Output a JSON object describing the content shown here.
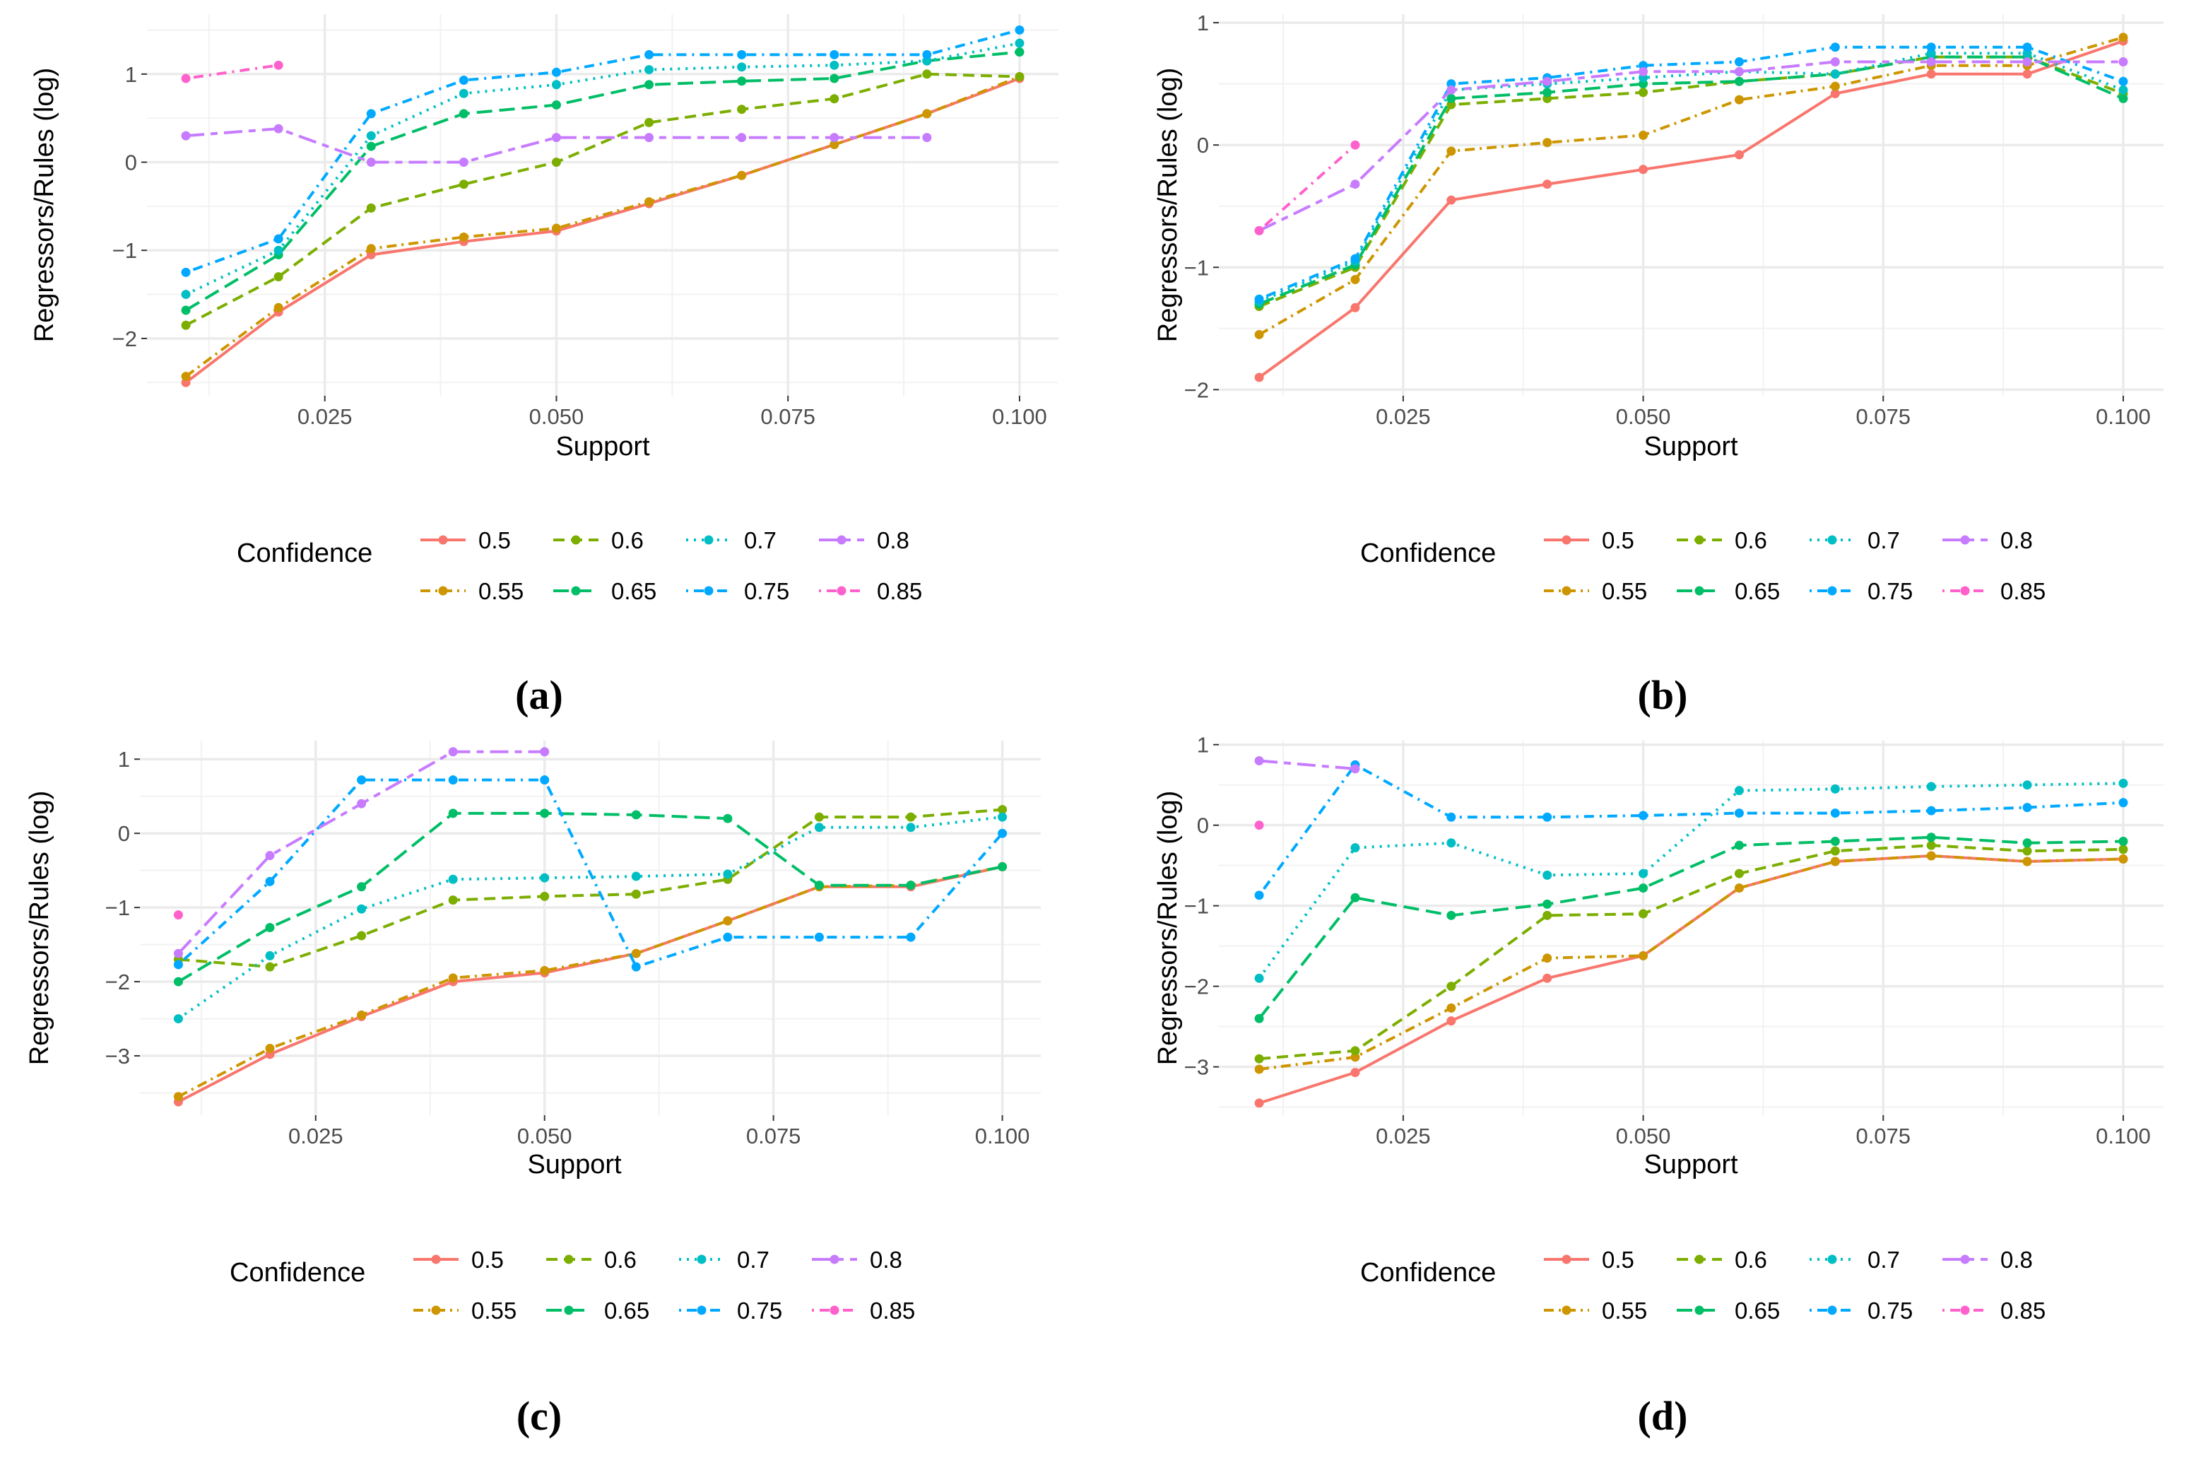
{
  "chart_data": [
    {
      "panel_label": "(a)",
      "type": "line",
      "xlabel": "Support",
      "ylabel": "Regressors/Rules (log)",
      "xlim": [
        0.0058,
        0.1042
      ],
      "ylim": [
        -2.65,
        1.68
      ],
      "x_ticks": [
        0.025,
        0.05,
        0.075,
        0.1
      ],
      "x_tick_labels": [
        "0.025",
        "0.050",
        "0.075",
        "0.100"
      ],
      "y_ticks": [
        -2,
        -1,
        0,
        1
      ],
      "y_tick_labels": [
        "−2",
        "−1",
        "0",
        "1"
      ],
      "series": [
        {
          "name": "0.5",
          "x": [
            0.01,
            0.02,
            0.03,
            0.04,
            0.05,
            0.06,
            0.07,
            0.08,
            0.09,
            0.1
          ],
          "y": [
            -2.5,
            -1.7,
            -1.05,
            -0.9,
            -0.78,
            -0.47,
            -0.15,
            0.2,
            0.55,
            0.95
          ]
        },
        {
          "name": "0.55",
          "x": [
            0.01,
            0.02,
            0.03,
            0.04,
            0.05,
            0.06,
            0.07,
            0.08,
            0.09,
            0.1
          ],
          "y": [
            -2.43,
            -1.65,
            -0.98,
            -0.85,
            -0.75,
            -0.45,
            -0.15,
            0.2,
            0.55,
            0.97
          ]
        },
        {
          "name": "0.6",
          "x": [
            0.01,
            0.02,
            0.03,
            0.04,
            0.05,
            0.06,
            0.07,
            0.08,
            0.09,
            0.1
          ],
          "y": [
            -1.85,
            -1.3,
            -0.52,
            -0.25,
            0.0,
            0.45,
            0.6,
            0.72,
            1.0,
            0.97
          ]
        },
        {
          "name": "0.65",
          "x": [
            0.01,
            0.02,
            0.03,
            0.04,
            0.05,
            0.06,
            0.07,
            0.08,
            0.09,
            0.1
          ],
          "y": [
            -1.68,
            -1.05,
            0.18,
            0.55,
            0.65,
            0.88,
            0.92,
            0.95,
            1.15,
            1.25
          ]
        },
        {
          "name": "0.7",
          "x": [
            0.01,
            0.02,
            0.03,
            0.04,
            0.05,
            0.06,
            0.07,
            0.08,
            0.09,
            0.1
          ],
          "y": [
            -1.5,
            -1.0,
            0.3,
            0.78,
            0.88,
            1.05,
            1.08,
            1.1,
            1.15,
            1.35
          ]
        },
        {
          "name": "0.75",
          "x": [
            0.01,
            0.02,
            0.03,
            0.04,
            0.05,
            0.06,
            0.07,
            0.08,
            0.09,
            0.1
          ],
          "y": [
            -1.25,
            -0.87,
            0.55,
            0.93,
            1.02,
            1.22,
            1.22,
            1.22,
            1.22,
            1.5
          ]
        },
        {
          "name": "0.8",
          "x": [
            0.01,
            0.02,
            0.03,
            0.04,
            0.05,
            0.06,
            0.07,
            0.08,
            0.09
          ],
          "y": [
            0.3,
            0.38,
            0.0,
            0.0,
            0.28,
            0.28,
            0.28,
            0.28,
            0.28
          ]
        },
        {
          "name": "0.85",
          "x": [
            0.01,
            0.02
          ],
          "y": [
            0.95,
            1.1
          ]
        }
      ]
    },
    {
      "panel_label": "(b)",
      "type": "line",
      "xlabel": "Support",
      "ylabel": "Regressors/Rules (log)",
      "xlim": [
        0.0058,
        0.1042
      ],
      "ylim": [
        -2.05,
        1.07
      ],
      "x_ticks": [
        0.025,
        0.05,
        0.075,
        0.1
      ],
      "x_tick_labels": [
        "0.025",
        "0.050",
        "0.075",
        "0.100"
      ],
      "y_ticks": [
        -2,
        -1,
        0,
        1
      ],
      "y_tick_labels": [
        "−2",
        "−1",
        "0",
        "1"
      ],
      "series": [
        {
          "name": "0.5",
          "x": [
            0.01,
            0.02,
            0.03,
            0.04,
            0.05,
            0.06,
            0.07,
            0.08,
            0.09,
            0.1
          ],
          "y": [
            -1.9,
            -1.33,
            -0.45,
            -0.32,
            -0.2,
            -0.08,
            0.42,
            0.58,
            0.58,
            0.85
          ]
        },
        {
          "name": "0.55",
          "x": [
            0.01,
            0.02,
            0.03,
            0.04,
            0.05,
            0.06,
            0.07,
            0.08,
            0.09,
            0.1
          ],
          "y": [
            -1.55,
            -1.1,
            -0.05,
            0.02,
            0.08,
            0.37,
            0.48,
            0.65,
            0.65,
            0.88
          ]
        },
        {
          "name": "0.6",
          "x": [
            0.01,
            0.02,
            0.03,
            0.04,
            0.05,
            0.06,
            0.07,
            0.08,
            0.09,
            0.1
          ],
          "y": [
            -1.32,
            -1.0,
            0.33,
            0.38,
            0.43,
            0.52,
            0.58,
            0.72,
            0.72,
            0.42
          ]
        },
        {
          "name": "0.65",
          "x": [
            0.01,
            0.02,
            0.03,
            0.04,
            0.05,
            0.06,
            0.07,
            0.08,
            0.09,
            0.1
          ],
          "y": [
            -1.3,
            -0.98,
            0.38,
            0.43,
            0.5,
            0.52,
            0.58,
            0.72,
            0.72,
            0.38
          ]
        },
        {
          "name": "0.7",
          "x": [
            0.01,
            0.02,
            0.03,
            0.04,
            0.05,
            0.06,
            0.07,
            0.08,
            0.09,
            0.1
          ],
          "y": [
            -1.28,
            -0.95,
            0.45,
            0.5,
            0.55,
            0.6,
            0.58,
            0.75,
            0.75,
            0.45
          ]
        },
        {
          "name": "0.75",
          "x": [
            0.01,
            0.02,
            0.03,
            0.04,
            0.05,
            0.06,
            0.07,
            0.08,
            0.09,
            0.1
          ],
          "y": [
            -1.26,
            -0.93,
            0.5,
            0.55,
            0.65,
            0.68,
            0.8,
            0.8,
            0.8,
            0.52
          ]
        },
        {
          "name": "0.8",
          "x": [
            0.01,
            0.02,
            0.03,
            0.04,
            0.05,
            0.06,
            0.07,
            0.08,
            0.09,
            0.1
          ],
          "y": [
            -0.7,
            -0.32,
            0.45,
            0.52,
            0.6,
            0.6,
            0.68,
            0.68,
            0.68,
            0.68
          ]
        },
        {
          "name": "0.85",
          "x": [
            0.01,
            0.02
          ],
          "y": [
            -0.7,
            0.0
          ]
        }
      ]
    },
    {
      "panel_label": "(c)",
      "type": "line",
      "xlabel": "Support",
      "ylabel": "Regressors/Rules (log)",
      "xlim": [
        0.0058,
        0.1042
      ],
      "ylim": [
        -3.8,
        1.25
      ],
      "x_ticks": [
        0.025,
        0.05,
        0.075,
        0.1
      ],
      "x_tick_labels": [
        "0.025",
        "0.050",
        "0.075",
        "0.100"
      ],
      "y_ticks": [
        -3,
        -2,
        -1,
        0,
        1
      ],
      "y_tick_labels": [
        "−3",
        "−2",
        "−1",
        "0",
        "1"
      ],
      "series": [
        {
          "name": "0.5",
          "x": [
            0.01,
            0.02,
            0.03,
            0.04,
            0.05,
            0.06,
            0.07,
            0.08,
            0.09,
            0.1
          ],
          "y": [
            -3.62,
            -2.98,
            -2.47,
            -2.0,
            -1.88,
            -1.62,
            -1.18,
            -0.72,
            -0.72,
            -0.45
          ]
        },
        {
          "name": "0.55",
          "x": [
            0.01,
            0.02,
            0.03,
            0.04,
            0.05,
            0.06,
            0.07,
            0.08,
            0.09,
            0.1
          ],
          "y": [
            -3.55,
            -2.9,
            -2.45,
            -1.95,
            -1.85,
            -1.62,
            -1.18,
            -0.72,
            -0.7,
            -0.45
          ]
        },
        {
          "name": "0.6",
          "x": [
            0.01,
            0.02,
            0.03,
            0.04,
            0.05,
            0.06,
            0.07,
            0.08,
            0.09,
            0.1
          ],
          "y": [
            -1.7,
            -1.8,
            -1.38,
            -0.9,
            -0.85,
            -0.82,
            -0.62,
            0.22,
            0.22,
            0.32
          ]
        },
        {
          "name": "0.65",
          "x": [
            0.01,
            0.02,
            0.03,
            0.04,
            0.05,
            0.06,
            0.07,
            0.08,
            0.09,
            0.1
          ],
          "y": [
            -2.0,
            -1.27,
            -0.72,
            0.27,
            0.27,
            0.25,
            0.2,
            -0.7,
            -0.7,
            -0.45
          ]
        },
        {
          "name": "0.7",
          "x": [
            0.01,
            0.02,
            0.03,
            0.04,
            0.05,
            0.06,
            0.07,
            0.08,
            0.09,
            0.1
          ],
          "y": [
            -2.5,
            -1.65,
            -1.02,
            -0.62,
            -0.6,
            -0.58,
            -0.55,
            0.08,
            0.08,
            0.22
          ]
        },
        {
          "name": "0.75",
          "x": [
            0.01,
            0.02,
            0.03,
            0.04,
            0.05,
            0.06,
            0.07,
            0.08,
            0.09,
            0.1
          ],
          "y": [
            -1.77,
            -0.65,
            0.72,
            0.72,
            0.72,
            -1.8,
            -1.4,
            -1.4,
            -1.4,
            0.0
          ]
        },
        {
          "name": "0.8",
          "x": [
            0.01,
            0.02,
            0.03,
            0.04,
            0.05
          ],
          "y": [
            -1.62,
            -0.3,
            0.4,
            1.1,
            1.1
          ]
        },
        {
          "name": "0.85",
          "x": [
            0.01
          ],
          "y": [
            -1.1
          ]
        }
      ]
    },
    {
      "panel_label": "(d)",
      "type": "line",
      "xlabel": "Support",
      "ylabel": "Regressors/Rules (log)",
      "xlim": [
        0.0058,
        0.1042
      ],
      "ylim": [
        -3.6,
        1.05
      ],
      "x_ticks": [
        0.025,
        0.05,
        0.075,
        0.1
      ],
      "x_tick_labels": [
        "0.025",
        "0.050",
        "0.075",
        "0.100"
      ],
      "y_ticks": [
        -3,
        -2,
        -1,
        0,
        1
      ],
      "y_tick_labels": [
        "−3",
        "−2",
        "−1",
        "0",
        "1"
      ],
      "series": [
        {
          "name": "0.5",
          "x": [
            0.01,
            0.02,
            0.03,
            0.04,
            0.05,
            0.06,
            0.07,
            0.08,
            0.09,
            0.1
          ],
          "y": [
            -3.45,
            -3.07,
            -2.43,
            -1.9,
            -1.62,
            -0.78,
            -0.45,
            -0.38,
            -0.45,
            -0.42
          ]
        },
        {
          "name": "0.55",
          "x": [
            0.01,
            0.02,
            0.03,
            0.04,
            0.05,
            0.06,
            0.07,
            0.08,
            0.09,
            0.1
          ],
          "y": [
            -3.03,
            -2.88,
            -2.27,
            -1.65,
            -1.62,
            -0.78,
            -0.45,
            -0.38,
            -0.45,
            -0.42
          ]
        },
        {
          "name": "0.6",
          "x": [
            0.01,
            0.02,
            0.03,
            0.04,
            0.05,
            0.06,
            0.07,
            0.08,
            0.09,
            0.1
          ],
          "y": [
            -2.9,
            -2.8,
            -2.0,
            -1.12,
            -1.1,
            -0.6,
            -0.32,
            -0.25,
            -0.32,
            -0.3
          ]
        },
        {
          "name": "0.65",
          "x": [
            0.01,
            0.02,
            0.03,
            0.04,
            0.05,
            0.06,
            0.07,
            0.08,
            0.09,
            0.1
          ],
          "y": [
            -2.4,
            -0.9,
            -1.12,
            -0.98,
            -0.78,
            -0.25,
            -0.2,
            -0.15,
            -0.22,
            -0.2
          ]
        },
        {
          "name": "0.7",
          "x": [
            0.01,
            0.02,
            0.03,
            0.04,
            0.05,
            0.06,
            0.07,
            0.08,
            0.09,
            0.1
          ],
          "y": [
            -1.9,
            -0.28,
            -0.22,
            -0.62,
            -0.6,
            0.43,
            0.45,
            0.48,
            0.5,
            0.52
          ]
        },
        {
          "name": "0.75",
          "x": [
            0.01,
            0.02,
            0.03,
            0.04,
            0.05,
            0.06,
            0.07,
            0.08,
            0.09,
            0.1
          ],
          "y": [
            -0.87,
            0.75,
            0.1,
            0.1,
            0.12,
            0.15,
            0.15,
            0.18,
            0.22,
            0.28
          ]
        },
        {
          "name": "0.8",
          "x": [
            0.01,
            0.02
          ],
          "y": [
            0.8,
            0.7
          ]
        },
        {
          "name": "0.85",
          "x": [
            0.01
          ],
          "y": [
            0.0
          ]
        }
      ]
    }
  ],
  "legend": {
    "title": "Confidence",
    "entries": [
      {
        "name": "0.5",
        "color": "#F8766D",
        "dash": "solid"
      },
      {
        "name": "0.55",
        "color": "#CD9600",
        "dash": "dotted-dash"
      },
      {
        "name": "0.6",
        "color": "#7CAE00",
        "dash": "dashed"
      },
      {
        "name": "0.65",
        "color": "#00BE67",
        "dash": "long-dash"
      },
      {
        "name": "0.7",
        "color": "#00BFC4",
        "dash": "dotted"
      },
      {
        "name": "0.75",
        "color": "#00A9FF",
        "dash": "dot-dash"
      },
      {
        "name": "0.8",
        "color": "#C77CFF",
        "dash": "two-dash"
      },
      {
        "name": "0.85",
        "color": "#FF61CC",
        "dash": "dot-dash"
      }
    ]
  }
}
